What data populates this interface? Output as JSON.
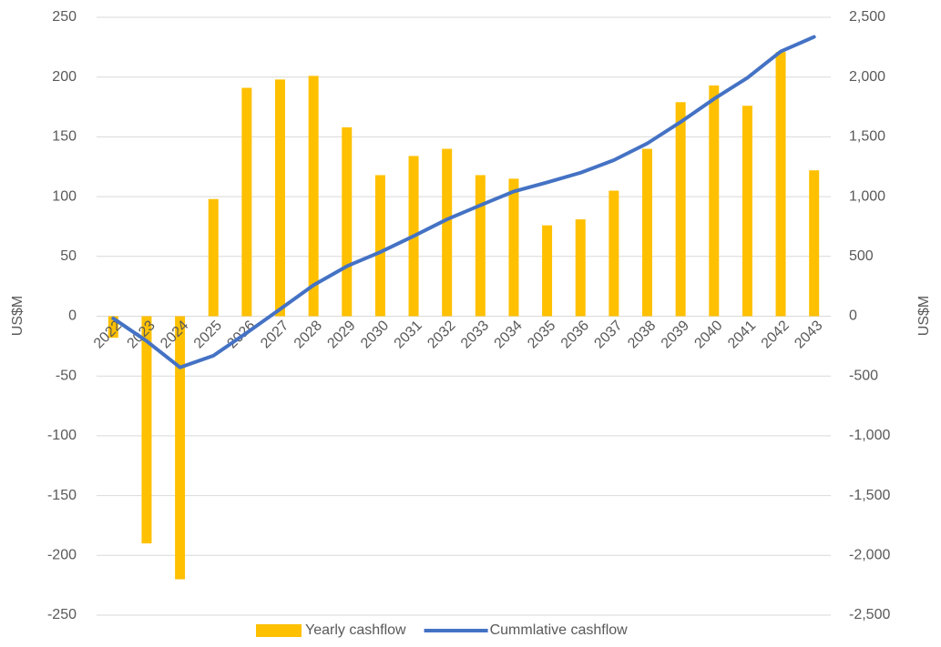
{
  "chart_data": {
    "type": "bar-line",
    "categories": [
      "2022",
      "2023",
      "2024",
      "2025",
      "2026",
      "2027",
      "2028",
      "2029",
      "2030",
      "2031",
      "2032",
      "2033",
      "2034",
      "2035",
      "2036",
      "2037",
      "2038",
      "2039",
      "2040",
      "2041",
      "2042",
      "2043"
    ],
    "series": [
      {
        "name": "Yearly cashflow",
        "type": "bar",
        "color": "#ffc000",
        "values": [
          -18,
          -190,
          -220,
          98,
          191,
          198,
          201,
          158,
          118,
          134,
          140,
          118,
          115,
          76,
          81,
          105,
          140,
          179,
          193,
          176,
          221,
          122
        ]
      },
      {
        "name": "Cummlative cashflow",
        "type": "line",
        "axis": "y2",
        "color": "#4472c4",
        "values": [
          -18,
          -208,
          -428,
          -330,
          -139,
          59,
          260,
          418,
          536,
          670,
          810,
          928,
          1043,
          1119,
          1200,
          1305,
          1445,
          1624,
          1817,
          1993,
          2214,
          2336
        ]
      }
    ],
    "ylabel": "US$M",
    "y2label": "US$M",
    "ylim": [
      -250,
      250
    ],
    "yticks": [
      -250,
      -200,
      -150,
      -100,
      -50,
      0,
      50,
      100,
      150,
      200,
      250
    ],
    "y2lim": [
      -2500,
      2500
    ],
    "y2ticks": [
      {
        "value": -2500,
        "label": "-2,500"
      },
      {
        "value": -2000,
        "label": "-2,000"
      },
      {
        "value": -1500,
        "label": "-1,500"
      },
      {
        "value": -1000,
        "label": "-1,000"
      },
      -500,
      0,
      500,
      {
        "value": 1000,
        "label": "1,000"
      },
      {
        "value": 1500,
        "label": "1,500"
      },
      {
        "value": 2000,
        "label": "2,000"
      },
      {
        "value": 2500,
        "label": "2,500"
      }
    ],
    "grid": true,
    "legend": "bottom"
  }
}
